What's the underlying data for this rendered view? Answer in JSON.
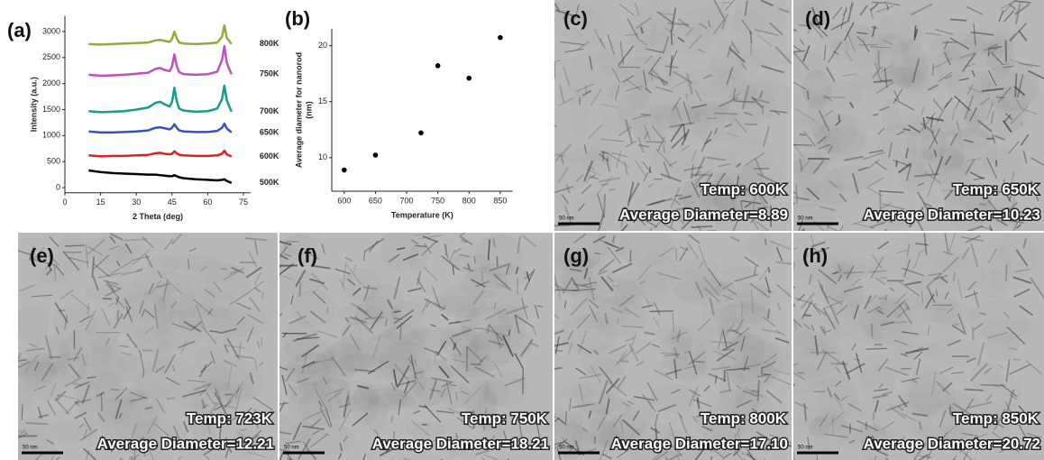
{
  "chart_data": [
    {
      "type": "line",
      "label": "(a)",
      "xlabel": "2 Theta (deg)",
      "ylabel": "Intensity (a.u.)",
      "x": [
        10,
        15,
        20,
        25,
        30,
        35,
        38,
        40,
        42,
        44,
        45,
        46,
        47,
        48,
        50,
        55,
        60,
        64,
        66,
        67,
        68,
        70
      ],
      "series": [
        {
          "name": "800K",
          "color": "#9aa53a",
          "values": [
            2760,
            2750,
            2760,
            2770,
            2780,
            2790,
            2830,
            2840,
            2820,
            2800,
            2860,
            3000,
            2870,
            2790,
            2770,
            2760,
            2770,
            2790,
            2900,
            3120,
            2880,
            2760
          ]
        },
        {
          "name": "750K",
          "color": "#c04fc0",
          "values": [
            2170,
            2150,
            2160,
            2170,
            2190,
            2210,
            2280,
            2300,
            2260,
            2240,
            2330,
            2560,
            2340,
            2220,
            2180,
            2170,
            2180,
            2230,
            2450,
            2720,
            2400,
            2180
          ]
        },
        {
          "name": "700K",
          "color": "#1a9a8a",
          "values": [
            1470,
            1450,
            1460,
            1470,
            1500,
            1540,
            1630,
            1650,
            1600,
            1560,
            1650,
            1920,
            1660,
            1520,
            1480,
            1460,
            1470,
            1520,
            1700,
            1960,
            1680,
            1460
          ]
        },
        {
          "name": "650K",
          "color": "#3a4fc0",
          "values": [
            1080,
            1060,
            1060,
            1070,
            1080,
            1100,
            1150,
            1160,
            1140,
            1120,
            1150,
            1220,
            1150,
            1100,
            1080,
            1070,
            1070,
            1090,
            1150,
            1230,
            1140,
            1060
          ]
        },
        {
          "name": "600K",
          "color": "#e02020",
          "values": [
            620,
            600,
            610,
            610,
            620,
            630,
            660,
            670,
            650,
            640,
            650,
            700,
            660,
            630,
            620,
            610,
            610,
            620,
            650,
            710,
            640,
            600
          ]
        },
        {
          "name": "500K",
          "color": "#000000",
          "values": [
            330,
            300,
            280,
            270,
            260,
            250,
            250,
            240,
            230,
            220,
            220,
            240,
            220,
            200,
            180,
            160,
            150,
            140,
            150,
            160,
            130,
            90
          ]
        }
      ],
      "xlim": [
        0,
        78
      ],
      "ylim": [
        -100,
        3300
      ],
      "xticks": [
        0,
        15,
        30,
        45,
        60,
        75
      ],
      "yticks": [
        0,
        500,
        1000,
        1500,
        2000,
        2500,
        3000
      ]
    },
    {
      "type": "scatter",
      "label": "(b)",
      "xlabel": "Temperature (K)",
      "ylabel": [
        "Average diameter for nanorod",
        "(nm)"
      ],
      "x": [
        600,
        650,
        723,
        750,
        800,
        850
      ],
      "values": [
        8.89,
        10.23,
        12.21,
        18.21,
        17.1,
        20.72
      ],
      "color": "#000000",
      "xlim": [
        580,
        870
      ],
      "ylim": [
        7,
        21.5
      ],
      "xticks": [
        600,
        650,
        700,
        750,
        800,
        850
      ],
      "yticks": [
        10,
        15,
        20
      ]
    }
  ],
  "images": [
    {
      "label": "(c)",
      "temp": "Temp: 600K",
      "diameter": "Average Diameter=8.89",
      "scale": "50 nm"
    },
    {
      "label": "(d)",
      "temp": "Temp: 650K",
      "diameter": "Average Diameter=10.23",
      "scale": "50 nm"
    },
    {
      "label": "(e)",
      "temp": "Temp: 723K",
      "diameter": "Average Diameter=12.21",
      "scale": "50 nm"
    },
    {
      "label": "(f)",
      "temp": "Temp: 750K",
      "diameter": "Average Diameter=18.21",
      "scale": "50 nm"
    },
    {
      "label": "(g)",
      "temp": "Temp: 800K",
      "diameter": "Average Diameter=17.10",
      "scale": "50 nm"
    },
    {
      "label": "(h)",
      "temp": "Temp: 850K",
      "diameter": "Average Diameter=20.72",
      "scale": "50 nm"
    }
  ]
}
